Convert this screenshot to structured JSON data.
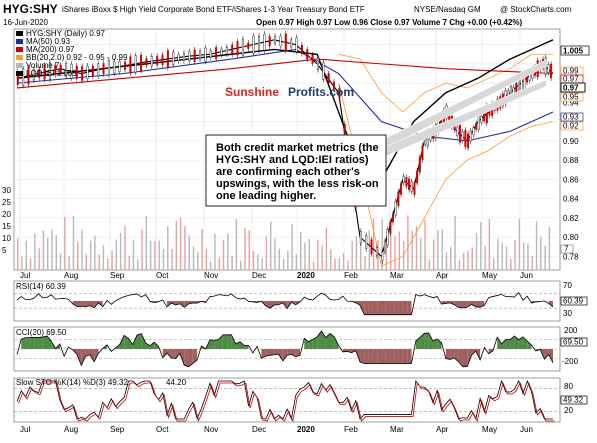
{
  "header": {
    "symbol": "HYG:SHY",
    "description": "iShares iBoxx $ High Yield Corporate Bond ETF/iShares 1-3 Year Treasury Bond ETF",
    "exchange": "NYSE/Nasdaq GM",
    "copyright": "@ StockCharts.com",
    "date": "16-Jun-2020",
    "ohlc": "Open 0.97  High 0.97  Low 0.96  Close 0.97  Volume 7  Chg +0.00 (+0.42%)"
  },
  "legend": {
    "price": "HYG:SHY (Daily) 0.97",
    "ma50": "MA(50) 0.93",
    "ma200": "MA(200) 0.97",
    "bb": "BB(20,2.0) 0.92 - 0.95 - 0.99",
    "volume": "Volume 7",
    "lqd": "LQD:IEI 1.005"
  },
  "watermark": {
    "part1": "Sunshine",
    "part2": "Profits.com"
  },
  "annotation": [
    "Both credit market metrics (the",
    "HYG:SHY and LQD:IEI ratios)",
    "are confirming each other's",
    "upswings, with the less risk-on",
    "one leading higher."
  ],
  "indicators": {
    "rsi": "RSI(14) 60.39",
    "cci": "CCI(20) 69.50",
    "sto_a": "Slow STO %K(14) %D(3) 49.32,",
    "sto_b": "44.20"
  },
  "right_badges": {
    "lqd": "1.005",
    "price": "0.97",
    "ma200": "0.97",
    "bb_up": "0.99",
    "bb_lo": "0.92",
    "bb_mid": "0.95",
    "ma50": "0.93",
    "vol": "7",
    "rsi": "60.39",
    "cci": "69.50",
    "sto": "49.32"
  },
  "colors": {
    "price": "#000000",
    "ma50": "#1f2f9f",
    "ma200": "#cc0000",
    "bb": "#ff9933",
    "lqd": "#000000",
    "volume_up": "#b8b8b8",
    "volume_down": "#e6a1a1",
    "candle_up": "#ffffff",
    "candle_down": "#cc0000",
    "neg_fill": "#a06060",
    "pos_fill": "#4e8b44"
  },
  "chart_data": {
    "type": "line",
    "x_ticks": [
      "Jul",
      "Aug",
      "Sep",
      "Oct",
      "Nov",
      "Dec",
      "2020",
      "Feb",
      "Mar",
      "Apr",
      "May",
      "Jun"
    ],
    "y_ticks_right": [
      "0.78",
      "0.80",
      "0.82",
      "0.84",
      "0.86",
      "0.88",
      "0.90",
      "0.92",
      "0.94",
      "0.96",
      "0.98",
      "1.00"
    ],
    "volume_ticks_left": [
      "30",
      "25",
      "20",
      "15",
      "10",
      "5"
    ],
    "ylim": [
      0.77,
      1.01
    ],
    "series": [
      {
        "name": "HYG:SHY (Daily)",
        "x": [
          0,
          10,
          20,
          30,
          40,
          50,
          60,
          70,
          80,
          90,
          100,
          110,
          120,
          130,
          140,
          150,
          160,
          170,
          175,
          180,
          185,
          190,
          195,
          200,
          205,
          210,
          215,
          220,
          225,
          230,
          235,
          240,
          245,
          250
        ],
        "values": [
          0.965,
          0.97,
          0.975,
          0.97,
          0.975,
          0.978,
          0.982,
          0.985,
          0.988,
          0.99,
          0.995,
          1.0,
          1.005,
          1.0,
          0.98,
          0.95,
          0.8,
          0.78,
          0.82,
          0.86,
          0.85,
          0.9,
          0.91,
          0.93,
          0.91,
          0.9,
          0.92,
          0.93,
          0.94,
          0.95,
          0.96,
          0.97,
          0.98,
          0.97
        ]
      },
      {
        "name": "MA(50)",
        "x": [
          0,
          50,
          100,
          130,
          150,
          170,
          190,
          210,
          230,
          250
        ],
        "values": [
          0.96,
          0.97,
          0.985,
          0.995,
          0.97,
          0.92,
          0.905,
          0.9,
          0.91,
          0.93
        ]
      },
      {
        "name": "MA(200)",
        "x": [
          0,
          50,
          100,
          140,
          170,
          200,
          230,
          250
        ],
        "values": [
          0.955,
          0.965,
          0.975,
          0.985,
          0.98,
          0.975,
          0.972,
          0.97
        ]
      },
      {
        "name": "LQD:IEI",
        "x": [
          0,
          20,
          40,
          60,
          80,
          100,
          120,
          140,
          150,
          165,
          175,
          185,
          200,
          215,
          230,
          245,
          250
        ],
        "values": [
          0.965,
          0.97,
          0.975,
          0.98,
          0.985,
          0.99,
          0.995,
          0.99,
          0.93,
          0.84,
          0.88,
          0.92,
          0.95,
          0.965,
          0.985,
          1.0,
          1.005
        ]
      }
    ],
    "indicators": {
      "rsi": {
        "range": [
          0,
          100
        ],
        "levels": [
          30,
          70
        ],
        "last": 60.39
      },
      "cci": {
        "range": [
          -200,
          200
        ],
        "levels": [
          -100,
          0,
          100
        ],
        "last": 69.5
      },
      "slow_sto": {
        "range": [
          0,
          100
        ],
        "levels": [
          20,
          80
        ],
        "k": 49.32,
        "d": 44.2
      }
    }
  }
}
